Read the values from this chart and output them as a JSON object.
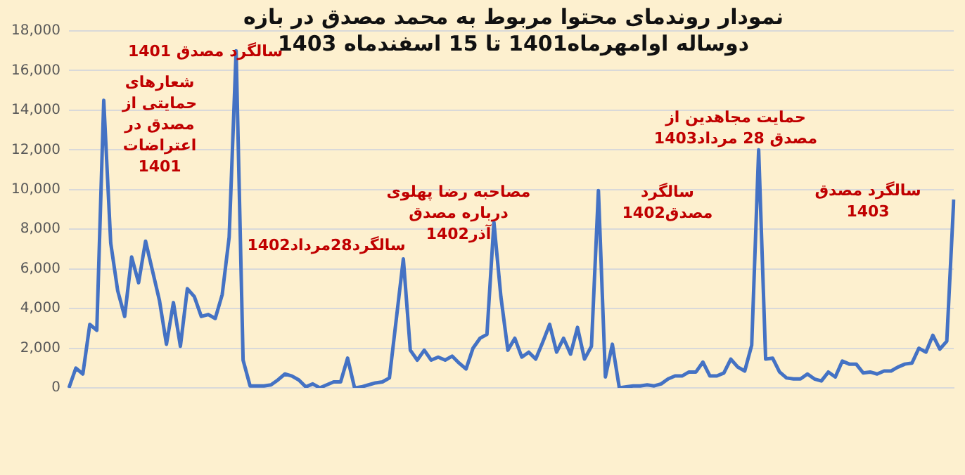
{
  "chart_data": {
    "type": "line",
    "title": "نمودار روندمای محتوا مربوط به محمد مصدق در بازه دوساله اوامهرماه1401 تا 15 اسفندماه 1403",
    "categories": [
      null,
      null,
      null,
      null,
      null,
      null,
      null,
      null,
      null,
      null,
      null,
      null,
      null,
      null,
      null,
      null,
      null,
      null,
      null,
      null,
      null,
      null,
      null,
      null,
      null,
      null,
      null,
      null,
      null,
      null,
      null,
      null,
      null,
      null,
      null,
      null,
      null,
      null,
      null,
      null,
      null,
      null,
      null,
      null,
      null,
      null,
      null,
      null,
      null,
      null,
      null,
      null,
      null,
      null,
      null,
      null,
      null,
      null,
      null,
      null,
      null,
      null,
      null,
      null,
      null,
      null,
      null,
      null,
      null,
      null,
      null,
      null,
      null,
      null,
      null,
      null,
      null,
      null,
      null,
      null,
      null,
      null,
      null,
      null,
      null,
      null,
      null,
      null,
      null,
      null,
      null,
      null,
      null,
      null,
      null,
      null,
      null,
      null,
      null,
      null,
      null,
      null,
      null,
      null,
      null,
      null,
      null,
      null,
      null,
      null,
      null,
      null,
      null,
      null,
      null,
      null,
      null,
      null,
      null,
      null,
      null,
      null,
      null,
      null,
      null,
      null,
      null,
      null
    ],
    "series": [
      {
        "color": "#4472c4",
        "values": [
          0,
          1000,
          700,
          3200,
          2900,
          14500,
          7300,
          4900,
          3600,
          6600,
          5300,
          7400,
          5900,
          4400,
          2200,
          4300,
          2100,
          5000,
          4600,
          3600,
          3700,
          3500,
          4700,
          7600,
          17000,
          1400,
          100,
          100,
          100,
          150,
          400,
          700,
          600,
          400,
          50,
          200,
          0,
          150,
          300,
          300,
          1500,
          0,
          50,
          150,
          250,
          300,
          500,
          3500,
          6500,
          1900,
          1400,
          1900,
          1400,
          1550,
          1400,
          1600,
          1250,
          950,
          2000,
          2500,
          2700,
          8350,
          4600,
          1900,
          2500,
          1550,
          1800,
          1450,
          2300,
          3200,
          1800,
          2500,
          1700,
          3050,
          1450,
          2100,
          9950,
          550,
          2200,
          0,
          50,
          100,
          100,
          150,
          100,
          200,
          450,
          600,
          600,
          800,
          800,
          1300,
          600,
          600,
          750,
          1450,
          1050,
          850,
          2150,
          12000,
          1450,
          1500,
          800,
          500,
          450,
          450,
          700,
          450,
          350,
          800,
          550,
          1350,
          1200,
          1200,
          750,
          800,
          700,
          850,
          850,
          1050,
          1200,
          1250,
          2000,
          1800,
          2650,
          1950,
          2350,
          9500
        ]
      }
    ],
    "ylim": [
      0,
      18000
    ],
    "yticks": [
      0,
      {
        "value": 2000,
        "label": "2,000"
      },
      {
        "value": 4000,
        "label": "4,000"
      },
      {
        "value": 6000,
        "label": "6,000"
      },
      {
        "value": 8000,
        "label": "8,000"
      },
      {
        "value": 10000,
        "label": "10,000"
      },
      {
        "value": 12000,
        "label": "12,000"
      },
      {
        "value": 14000,
        "label": "14,000"
      },
      {
        "value": 16000,
        "label": "16,000"
      },
      {
        "value": 18000,
        "label": "18,000"
      }
    ],
    "grid": "y",
    "legend": false,
    "marker": "none",
    "line_style": "solid",
    "annotations": [
      "سالگرد مصدق 1401",
      "شعارهای حمایتی از مصدق در اعتراضات 1401",
      "سالگرد28مرداد1402",
      "مصاحبه رضا پهلوی درباره مصدق آذر1402",
      "سالگرد مصدق1402",
      "حمایت مجاهدین از مصدق 28 مرداد1403",
      "سالگرد مصدق 1403"
    ]
  }
}
